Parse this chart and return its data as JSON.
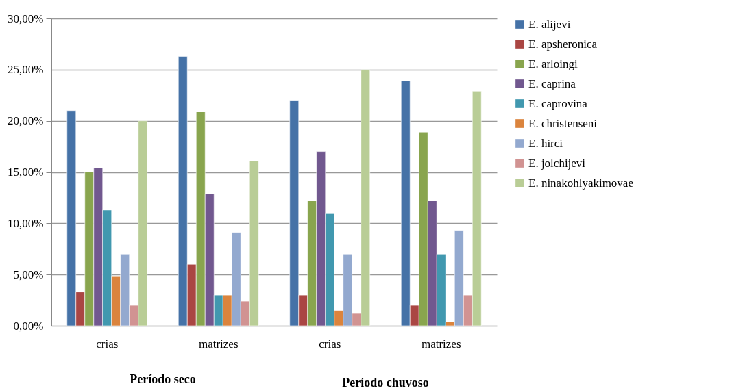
{
  "chart_data": {
    "type": "bar",
    "categories": [
      "crias",
      "matrizes",
      "crias",
      "matrizes"
    ],
    "series": [
      {
        "name": "E. alijevi",
        "color": "#4572a7",
        "values": [
          21.0,
          26.3,
          22.0,
          23.9
        ]
      },
      {
        "name": "E. apsheronica",
        "color": "#aa4643",
        "values": [
          3.3,
          6.0,
          3.0,
          2.0
        ]
      },
      {
        "name": "E. arloingi",
        "color": "#89a54e",
        "values": [
          15.0,
          20.9,
          12.2,
          18.9
        ]
      },
      {
        "name": "E. caprina",
        "color": "#71588f",
        "values": [
          15.4,
          12.9,
          17.0,
          12.2
        ]
      },
      {
        "name": "E. caprovina",
        "color": "#4198af",
        "values": [
          11.3,
          3.0,
          11.0,
          7.0
        ]
      },
      {
        "name": "E. christenseni",
        "color": "#db843d",
        "values": [
          4.8,
          3.0,
          1.5,
          0.4
        ]
      },
      {
        "name": "E. hirci",
        "color": "#93a9cf",
        "values": [
          7.0,
          9.1,
          7.0,
          9.3
        ]
      },
      {
        "name": "E. jolchijevi",
        "color": "#d19392",
        "values": [
          2.0,
          2.4,
          1.2,
          3.0
        ]
      },
      {
        "name": "E. ninakohlyakimovae",
        "color": "#b9cd96",
        "values": [
          20.0,
          16.1,
          25.0,
          22.9
        ]
      }
    ],
    "ylim": [
      0,
      30
    ],
    "yticks": [
      {
        "value": 0,
        "label": "0,00%"
      },
      {
        "value": 5,
        "label": "5,00%"
      },
      {
        "value": 10,
        "label": "10,00%"
      },
      {
        "value": 15,
        "label": "15,00%"
      },
      {
        "value": 20,
        "label": "20,00%"
      },
      {
        "value": 25,
        "label": "25,00%"
      },
      {
        "value": 30,
        "label": "30,00%"
      }
    ],
    "grid": "y",
    "legend": "right",
    "annotations": [
      "Período seco",
      "Período chuvoso"
    ]
  }
}
